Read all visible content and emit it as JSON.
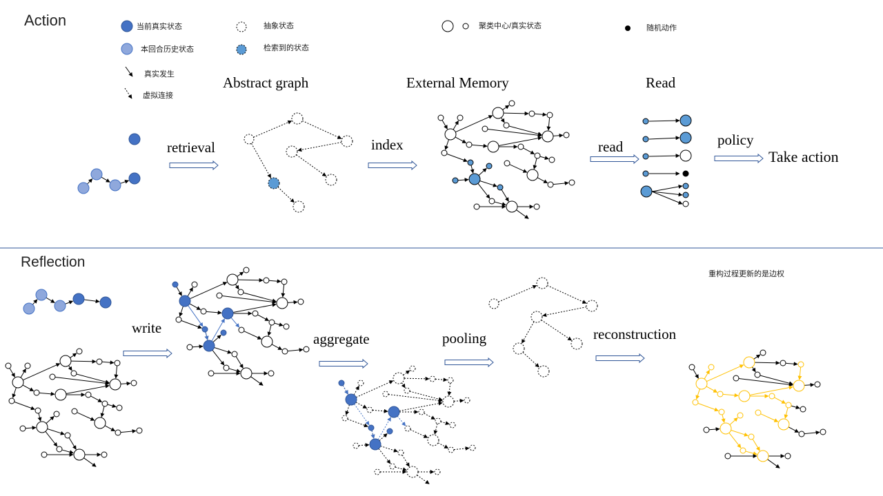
{
  "sections": {
    "action": "Action",
    "reflection": "Reflection"
  },
  "legend": {
    "current_real": "当前真实状态",
    "round_history": "本回合历史状态",
    "abstract_state": "抽象状态",
    "retrieved_state": "检索到的状态",
    "cluster_center": "聚类中心/真实状态",
    "random_action": "随机动作",
    "real_occurrence": "真实发生",
    "virtual_link": "虚拟连接"
  },
  "titles": {
    "abstract_graph": "Abstract graph",
    "external_memory": "External Memory",
    "read": "Read"
  },
  "steps": {
    "retrieval": "retrieval",
    "index": "index",
    "read": "read",
    "policy": "policy",
    "take_action": "Take action",
    "write": "write",
    "aggregate": "aggregate",
    "pooling": "pooling",
    "reconstruction": "reconstruction"
  },
  "note": "重构过程更新的是边权",
  "colors": {
    "current": "#4472c4",
    "history": "#8fa8dc",
    "retrieved": "#5b9bd5",
    "highlight": "#ffc000",
    "divider": "#2f5597"
  }
}
